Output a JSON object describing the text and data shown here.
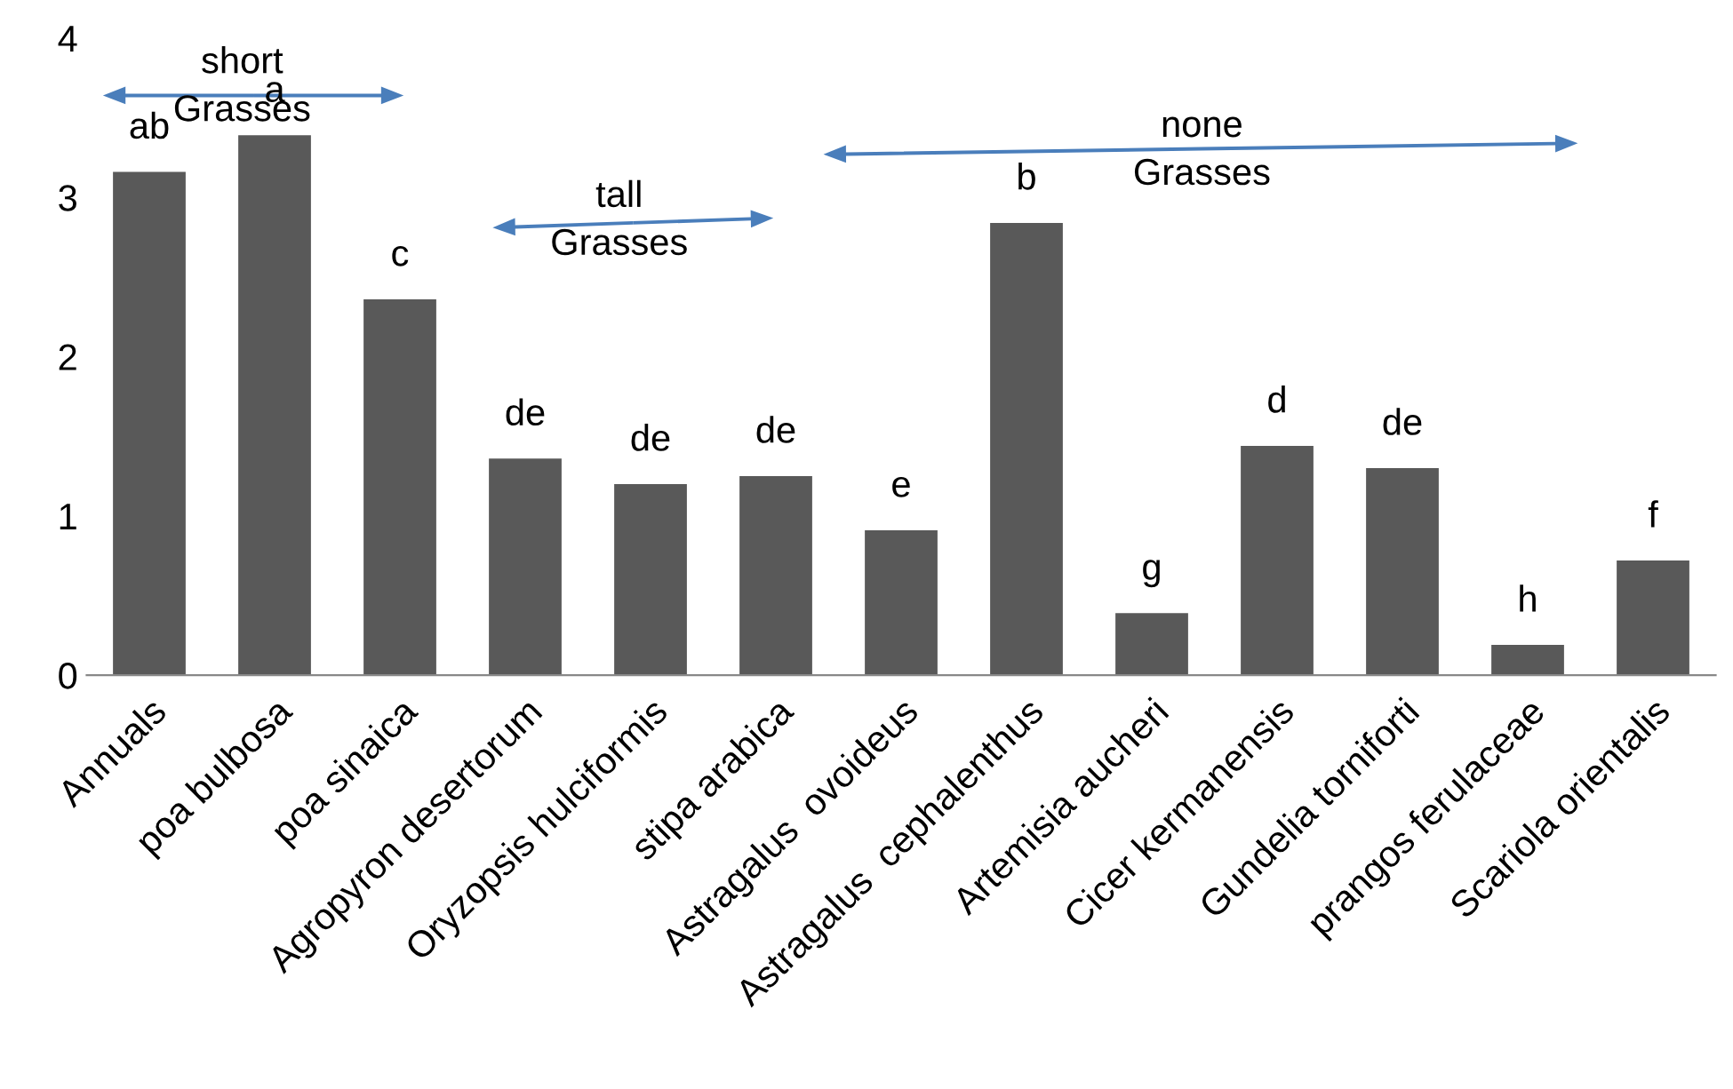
{
  "chart_data": {
    "type": "bar",
    "categories": [
      "Annuals",
      "poa bulbosa",
      "poa sinaica",
      "Agropyron desertorum",
      "Oryzopsis hulciformis",
      "stipa arabica",
      "Astragalus  ovoideus",
      "Astragalus  cephalenthus",
      "Artemisia aucheri",
      "Cicer kermanensis",
      "Gundelia torniforti",
      "prangos ferulaceae",
      "Scariola orientalis"
    ],
    "values": [
      3.16,
      3.39,
      2.36,
      1.36,
      1.2,
      1.25,
      0.91,
      2.84,
      0.39,
      1.44,
      1.3,
      0.19,
      0.72
    ],
    "color": "#595959",
    "ylim": [
      0,
      4
    ],
    "yticks": [
      0,
      1,
      2,
      3,
      4
    ],
    "grid": false,
    "annotations": [
      {
        "text": "ab",
        "x": "Annuals",
        "y": 3.16
      },
      {
        "text": "a",
        "x": "poa bulbosa",
        "y": 3.39
      },
      {
        "text": "c",
        "x": "poa sinaica",
        "y": 2.36
      },
      {
        "text": "de",
        "x": "Agropyron desertorum",
        "y": 1.36
      },
      {
        "text": "de",
        "x": "Oryzopsis hulciformis",
        "y": 1.2
      },
      {
        "text": "de",
        "x": "stipa arabica",
        "y": 1.25
      },
      {
        "text": "e",
        "x": "Astragalus  ovoideus",
        "y": 0.91
      },
      {
        "text": "b",
        "x": "Astragalus  cephalenthus",
        "y": 2.84
      },
      {
        "text": "g",
        "x": "Artemisia aucheri",
        "y": 0.39
      },
      {
        "text": "d",
        "x": "Cicer kermanensis",
        "y": 1.44
      },
      {
        "text": "de",
        "x": "Gundelia torniforti",
        "y": 1.3
      },
      {
        "text": "h",
        "x": "prangos ferulaceae",
        "y": 0.19
      },
      {
        "text": "f",
        "x": "Scariola orientalis",
        "y": 0.72
      },
      "short\nGrasses",
      "tall\nGrasses",
      "none\nGrasses"
    ]
  }
}
